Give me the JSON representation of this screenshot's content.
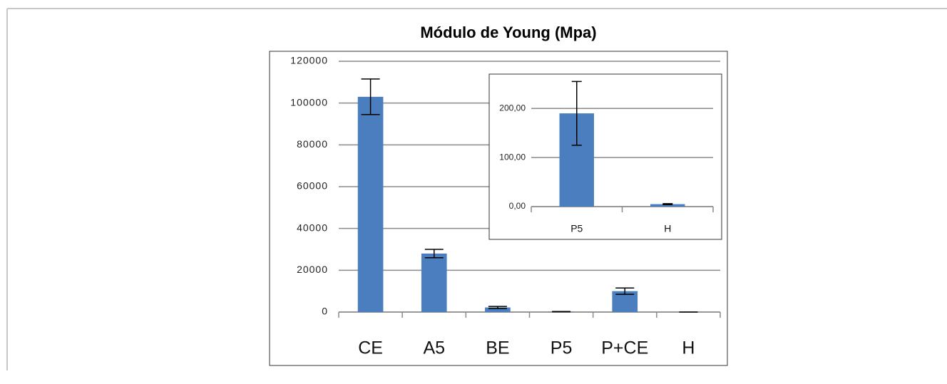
{
  "chart_data": [
    {
      "type": "bar",
      "title": "Módulo de Young (Mpa)",
      "categories": [
        "CE",
        "A5",
        "BE",
        "P5",
        "P+CE",
        "H"
      ],
      "values": [
        103000,
        28000,
        2200,
        190,
        10000,
        5
      ],
      "errors": [
        8500,
        2000,
        500,
        65,
        1500,
        1
      ],
      "color": "#4a7ebf",
      "ylim": [
        0,
        120000
      ],
      "yticks": [
        0,
        20000,
        40000,
        60000,
        80000,
        100000,
        120000
      ],
      "grid": true
    },
    {
      "type": "bar",
      "categories": [
        "P5",
        "H"
      ],
      "values": [
        190,
        5
      ],
      "errors": [
        65,
        1
      ],
      "color": "#4a7ebf",
      "ylim": [
        0,
        270
      ],
      "yticks": [
        {
          "value": 0,
          "label": "0,00"
        },
        {
          "value": 100,
          "label": "100,00"
        },
        {
          "value": 200,
          "label": "200,00"
        }
      ],
      "grid": true
    }
  ]
}
